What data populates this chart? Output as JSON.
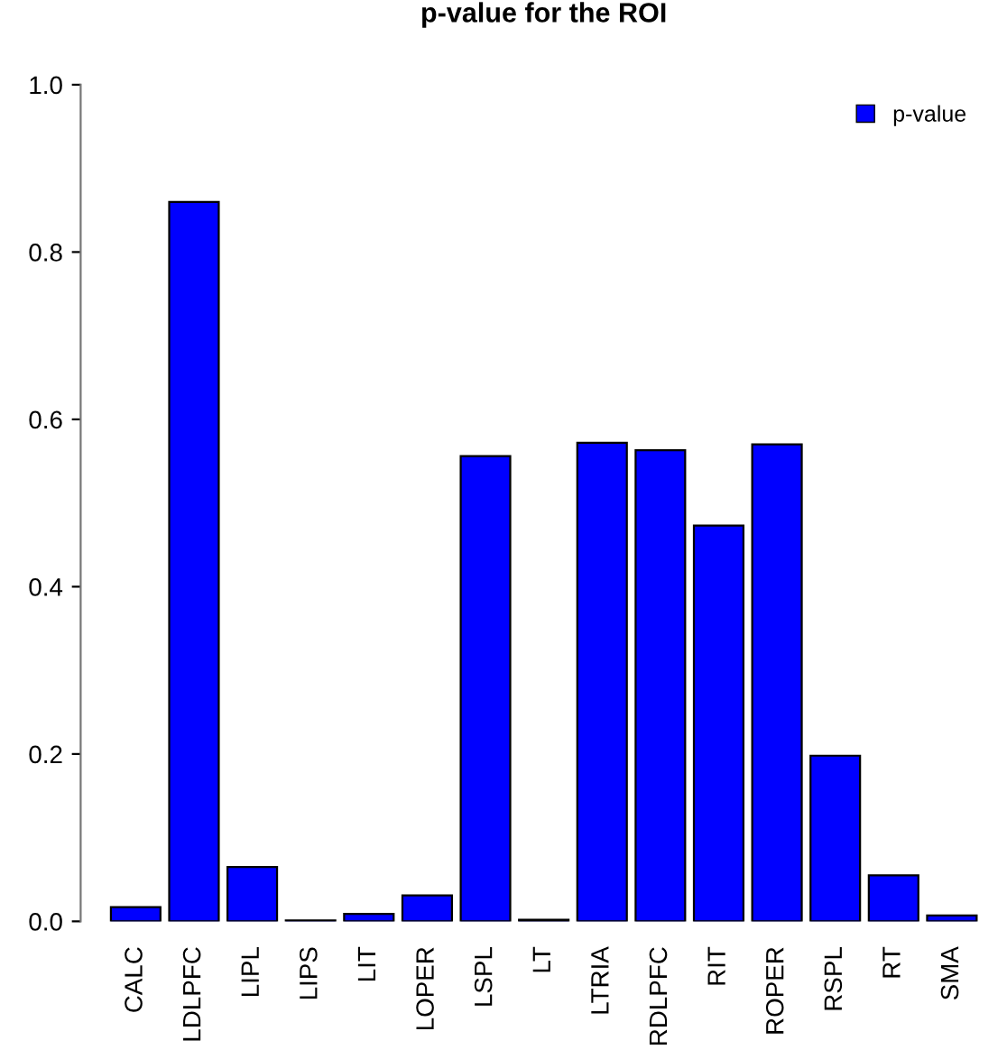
{
  "chart_data": {
    "type": "bar",
    "title": "p-value for the ROI",
    "categories": [
      "CALC",
      "LDLPFC",
      "LIPL",
      "LIPS",
      "LIT",
      "LOPER",
      "LSPL",
      "LT",
      "LTRIA",
      "RDLPFC",
      "RIT",
      "ROPER",
      "RSPL",
      "RT",
      "SMA"
    ],
    "series": [
      {
        "name": "p-value",
        "color": "#0000ff",
        "values": [
          0.017,
          0.86,
          0.065,
          0.001,
          0.009,
          0.031,
          0.556,
          0.002,
          0.572,
          0.563,
          0.473,
          0.57,
          0.198,
          0.055,
          0.007
        ]
      }
    ],
    "ylim": [
      0,
      1
    ],
    "yticks": [
      {
        "value": 0,
        "label": "0.0"
      },
      0.2,
      0.4,
      0.6,
      0.8,
      {
        "value": 1,
        "label": "1.0"
      }
    ],
    "grid": false,
    "legend": "top right"
  }
}
